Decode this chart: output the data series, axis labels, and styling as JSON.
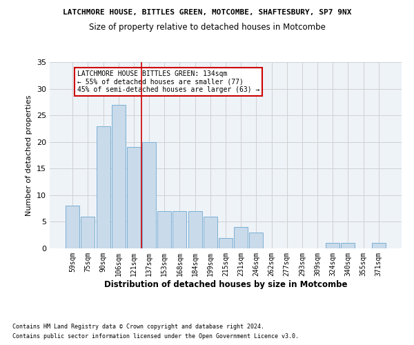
{
  "title1": "LATCHMORE HOUSE, BITTLES GREEN, MOTCOMBE, SHAFTESBURY, SP7 9NX",
  "title2": "Size of property relative to detached houses in Motcombe",
  "xlabel": "Distribution of detached houses by size in Motcombe",
  "ylabel": "Number of detached properties",
  "categories": [
    "59sqm",
    "75sqm",
    "90sqm",
    "106sqm",
    "121sqm",
    "137sqm",
    "153sqm",
    "168sqm",
    "184sqm",
    "199sqm",
    "215sqm",
    "231sqm",
    "246sqm",
    "262sqm",
    "277sqm",
    "293sqm",
    "309sqm",
    "324sqm",
    "340sqm",
    "355sqm",
    "371sqm"
  ],
  "values": [
    8,
    6,
    23,
    27,
    19,
    20,
    7,
    7,
    7,
    6,
    2,
    4,
    3,
    0,
    0,
    0,
    0,
    1,
    1,
    0,
    1
  ],
  "bar_color": "#c9daea",
  "bar_edge_color": "#7bafd4",
  "grid_color": "#d0d0d0",
  "bg_color": "#eef3f8",
  "ref_line_index": 5,
  "ref_line_color": "#cc0000",
  "annotation_text": "LATCHMORE HOUSE BITTLES GREEN: 134sqm\n← 55% of detached houses are smaller (77)\n45% of semi-detached houses are larger (63) →",
  "annotation_box_color": "#ffffff",
  "annotation_box_edge": "#cc0000",
  "footer1": "Contains HM Land Registry data © Crown copyright and database right 2024.",
  "footer2": "Contains public sector information licensed under the Open Government Licence v3.0.",
  "ylim": [
    0,
    35
  ],
  "yticks": [
    0,
    5,
    10,
    15,
    20,
    25,
    30,
    35
  ]
}
